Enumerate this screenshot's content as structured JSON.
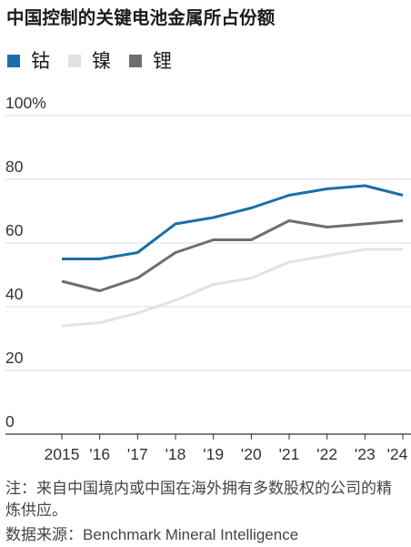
{
  "title": "中国控制的关键电池金属所占份额",
  "note": "注：来自中国境内或中国在海外拥有多数股权的公司的精炼供应。",
  "source_label": "数据来源：",
  "source_text": "Benchmark Mineral Intelligence",
  "colors": {
    "钴": "#1a6fa8",
    "镍": "#e2e2e2",
    "锂": "#6e6e6e"
  },
  "chart_data": {
    "type": "line",
    "title": "中国控制的关键电池金属所占份额",
    "x": [
      2015,
      2016,
      2017,
      2018,
      2019,
      2020,
      2021,
      2022,
      2023,
      2024
    ],
    "x_tick_labels": [
      "2015",
      "'16",
      "'17",
      "'18",
      "'19",
      "'20",
      "'21",
      "'22",
      "'23",
      "'24"
    ],
    "y_tick_labels": [
      "0",
      "20",
      "40",
      "60",
      "80",
      "100%"
    ],
    "ylim": [
      0,
      100
    ],
    "grid": true,
    "legend": "top-left",
    "series": [
      {
        "name": "钴",
        "color": "#1a6fa8",
        "values": [
          55,
          55,
          57,
          66,
          68,
          71,
          75,
          77,
          78,
          75
        ]
      },
      {
        "name": "镍",
        "color": "#e2e2e2",
        "values": [
          34,
          35,
          38,
          42,
          47,
          49,
          54,
          56,
          58,
          58
        ]
      },
      {
        "name": "锂",
        "color": "#6e6e6e",
        "values": [
          48,
          45,
          49,
          57,
          61,
          61,
          67,
          65,
          66,
          67
        ]
      }
    ]
  }
}
